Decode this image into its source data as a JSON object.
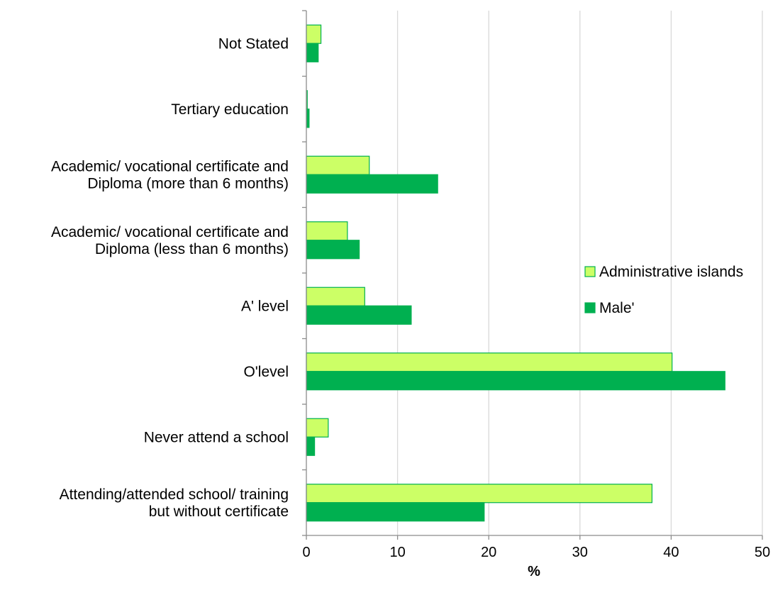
{
  "chart_data": {
    "type": "bar",
    "orientation": "horizontal",
    "categories": [
      "Not Stated",
      "Tertiary education",
      "Academic/ vocational certificate and Diploma (more than 6 months)",
      "Academic/ vocational certificate and Diploma (less than 6 months)",
      "A' level",
      "O'level",
      "Never attend a school",
      "Attending/attended school/ training but without certificate"
    ],
    "category_lines": [
      [
        "Not Stated"
      ],
      [
        "Tertiary education"
      ],
      [
        "Academic/ vocational certificate and",
        "Diploma (more than 6 months)"
      ],
      [
        "Academic/ vocational certificate and",
        "Diploma (less than 6 months)"
      ],
      [
        "A' level"
      ],
      [
        "O'level"
      ],
      [
        "Never attend a school"
      ],
      [
        "Attending/attended school/ training",
        "but without certificate"
      ]
    ],
    "series": [
      {
        "name": "Administrative islands",
        "color": "#CCFF66",
        "stroke": "#00B050",
        "values": [
          1.6,
          0.1,
          6.9,
          4.5,
          6.4,
          40.1,
          2.4,
          37.9
        ]
      },
      {
        "name": "Male'",
        "color": "#00B050",
        "stroke": "#00B050",
        "values": [
          1.3,
          0.3,
          14.4,
          5.8,
          11.5,
          45.9,
          0.9,
          19.5
        ]
      }
    ],
    "x_ticks": [
      0,
      10,
      20,
      30,
      40,
      50
    ],
    "xlim": [
      0,
      50
    ],
    "xlabel": "%",
    "ylabel": "",
    "title": "",
    "grid": "vertical",
    "legend_position": "right"
  }
}
